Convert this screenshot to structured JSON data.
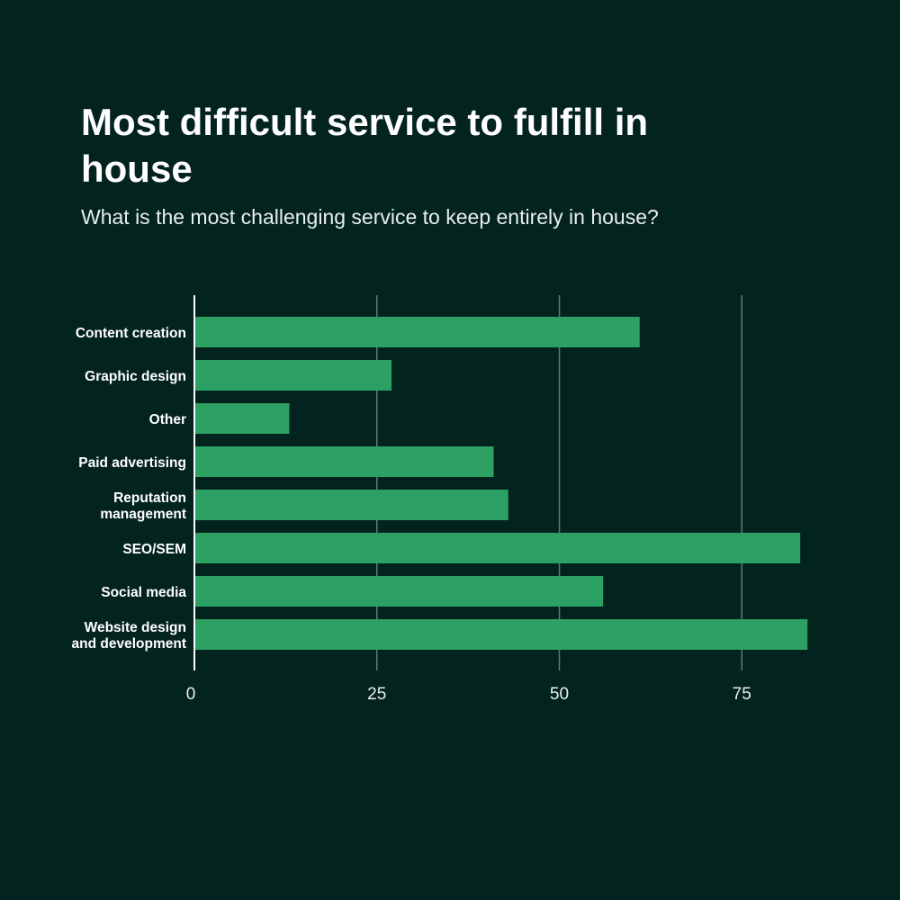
{
  "chart_data": {
    "type": "bar",
    "orientation": "horizontal",
    "title": "Most difficult service to fulfill in house",
    "subtitle": "What is the most challenging service to keep entirely in house?",
    "categories": [
      "Content creation",
      "Graphic design",
      "Other",
      "Paid advertising",
      "Reputation management",
      "SEO/SEM",
      "Social media",
      "Website design and development"
    ],
    "category_lines": [
      [
        "Content creation"
      ],
      [
        "Graphic design"
      ],
      [
        "Other"
      ],
      [
        "Paid advertising"
      ],
      [
        "Reputation",
        "management"
      ],
      [
        "SEO/SEM"
      ],
      [
        "Social media"
      ],
      [
        "Website design",
        "and development"
      ]
    ],
    "values": [
      61,
      27,
      13,
      41,
      43,
      83,
      56,
      84
    ],
    "xlim": [
      0,
      85
    ],
    "xticks": [
      0,
      25,
      50,
      75
    ],
    "xlabel": "",
    "ylabel": "",
    "grid": true,
    "colors": {
      "bar": "#2ca163",
      "background": "#03231f",
      "grid": "#5d7a74"
    }
  }
}
